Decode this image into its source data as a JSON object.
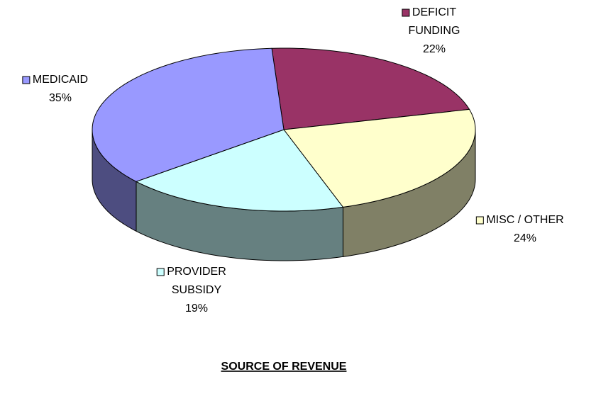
{
  "chart_data": {
    "type": "pie3d",
    "title": "SOURCE OF REVENUE",
    "categories": [
      "DEFICIT\nFUNDING",
      "MISC  / OTHER",
      "PROVIDER\nSUBSIDY",
      "MEDICAID"
    ],
    "values": [
      22,
      24,
      19,
      35
    ],
    "value_labels": [
      "22%",
      "24%",
      "19%",
      "35%"
    ],
    "colors": [
      "#993366",
      "#ffffcc",
      "#ccffff",
      "#9999ff"
    ]
  }
}
